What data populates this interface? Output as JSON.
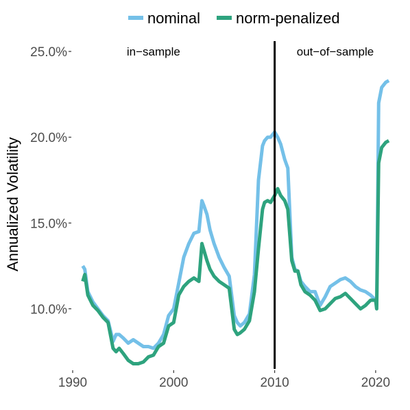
{
  "chart_data": {
    "type": "line",
    "title": "",
    "xlabel": "",
    "ylabel": "Annualized Volatility",
    "xlim": [
      1990,
      2021.5
    ],
    "ylim": [
      6.5,
      25.6
    ],
    "x_ticks": [
      1990,
      2000,
      2010,
      2020
    ],
    "y_ticks": [
      10,
      15,
      20,
      25
    ],
    "y_tick_labels": [
      "10.0%",
      "15.0%",
      "20.0%",
      "25.0%"
    ],
    "grid": false,
    "legend": "top",
    "colors": {
      "nominal": "#74c0e8",
      "norm-penalized": "#2ea37e",
      "divider": "#000000"
    },
    "annotations": [
      {
        "text": "in−sample",
        "x": 1998,
        "y": 25
      },
      {
        "text": "out−of−sample",
        "x": 2016,
        "y": 25
      }
    ],
    "vertical_line": 2010,
    "series": [
      {
        "name": "nominal",
        "x": [
          1991.0,
          1991.2,
          1991.5,
          1992.0,
          1992.5,
          1993.0,
          1993.5,
          1993.8,
          1994.0,
          1994.3,
          1994.6,
          1995.0,
          1995.5,
          1996.0,
          1996.5,
          1997.0,
          1997.5,
          1998.0,
          1998.5,
          1999.0,
          1999.5,
          2000.0,
          2000.5,
          2001.0,
          2001.5,
          2002.0,
          2002.5,
          2002.8,
          2003.0,
          2003.3,
          2003.6,
          2004.0,
          2004.5,
          2005.0,
          2005.5,
          2006.0,
          2006.3,
          2006.6,
          2007.0,
          2007.5,
          2008.0,
          2008.4,
          2008.8,
          2009.0,
          2009.3,
          2009.6,
          2010.0,
          2010.3,
          2010.6,
          2011.0,
          2011.3,
          2011.7,
          2012.0,
          2012.3,
          2012.6,
          2013.0,
          2013.5,
          2014.0,
          2014.5,
          2015.0,
          2015.5,
          2016.0,
          2016.5,
          2017.0,
          2017.5,
          2018.0,
          2018.5,
          2019.0,
          2019.5,
          2020.0,
          2020.1,
          2020.3,
          2020.6,
          2021.0,
          2021.3
        ],
        "y": [
          12.5,
          12.3,
          11.0,
          10.4,
          10.0,
          9.6,
          9.3,
          8.6,
          8.1,
          8.5,
          8.5,
          8.3,
          8.0,
          8.2,
          8.0,
          7.8,
          7.8,
          7.7,
          8.0,
          8.5,
          9.6,
          10.0,
          11.5,
          13.0,
          13.8,
          14.4,
          14.5,
          16.3,
          16.0,
          15.5,
          14.6,
          13.8,
          13.0,
          12.4,
          11.9,
          9.6,
          9.2,
          9.0,
          9.2,
          9.7,
          12.0,
          17.5,
          19.5,
          19.8,
          20.0,
          20.0,
          20.3,
          20.0,
          19.6,
          18.7,
          18.2,
          13.0,
          12.3,
          12.2,
          11.6,
          11.3,
          11.0,
          11.0,
          10.2,
          10.7,
          11.3,
          11.5,
          11.7,
          11.8,
          11.6,
          11.3,
          11.1,
          11.0,
          10.8,
          10.5,
          10.2,
          22.0,
          22.9,
          23.2,
          23.3
        ]
      },
      {
        "name": "norm-penalized",
        "x": [
          1991.0,
          1991.2,
          1991.5,
          1992.0,
          1992.5,
          1993.0,
          1993.5,
          1993.8,
          1994.0,
          1994.3,
          1994.6,
          1995.0,
          1995.5,
          1996.0,
          1996.5,
          1997.0,
          1997.5,
          1998.0,
          1998.5,
          1999.0,
          1999.5,
          2000.0,
          2000.5,
          2001.0,
          2001.5,
          2002.0,
          2002.5,
          2002.8,
          2003.0,
          2003.3,
          2003.6,
          2004.0,
          2004.5,
          2005.0,
          2005.5,
          2006.0,
          2006.3,
          2006.6,
          2007.0,
          2007.5,
          2008.0,
          2008.4,
          2008.8,
          2009.0,
          2009.3,
          2009.6,
          2010.0,
          2010.3,
          2010.6,
          2011.0,
          2011.3,
          2011.7,
          2012.0,
          2012.3,
          2012.6,
          2013.0,
          2013.5,
          2014.0,
          2014.5,
          2015.0,
          2015.5,
          2016.0,
          2016.5,
          2017.0,
          2017.5,
          2018.0,
          2018.5,
          2019.0,
          2019.5,
          2020.0,
          2020.1,
          2020.3,
          2020.6,
          2021.0,
          2021.3
        ],
        "y": [
          11.6,
          12.0,
          10.8,
          10.2,
          9.9,
          9.5,
          9.2,
          8.3,
          7.7,
          7.5,
          7.7,
          7.4,
          7.0,
          6.8,
          6.8,
          6.9,
          7.2,
          7.3,
          7.8,
          8.0,
          9.0,
          9.2,
          10.8,
          11.3,
          11.6,
          11.8,
          11.6,
          13.8,
          13.4,
          12.8,
          12.3,
          11.9,
          11.6,
          11.4,
          11.2,
          8.8,
          8.5,
          8.6,
          8.8,
          9.3,
          11.0,
          13.5,
          15.8,
          16.2,
          16.3,
          16.2,
          16.6,
          17.0,
          16.6,
          16.3,
          15.8,
          12.8,
          12.2,
          12.2,
          11.4,
          11.0,
          10.8,
          10.5,
          9.9,
          10.0,
          10.3,
          10.6,
          10.7,
          10.9,
          10.6,
          10.3,
          10.0,
          10.2,
          10.5,
          10.5,
          10.0,
          18.5,
          19.4,
          19.7,
          19.8
        ]
      }
    ]
  }
}
